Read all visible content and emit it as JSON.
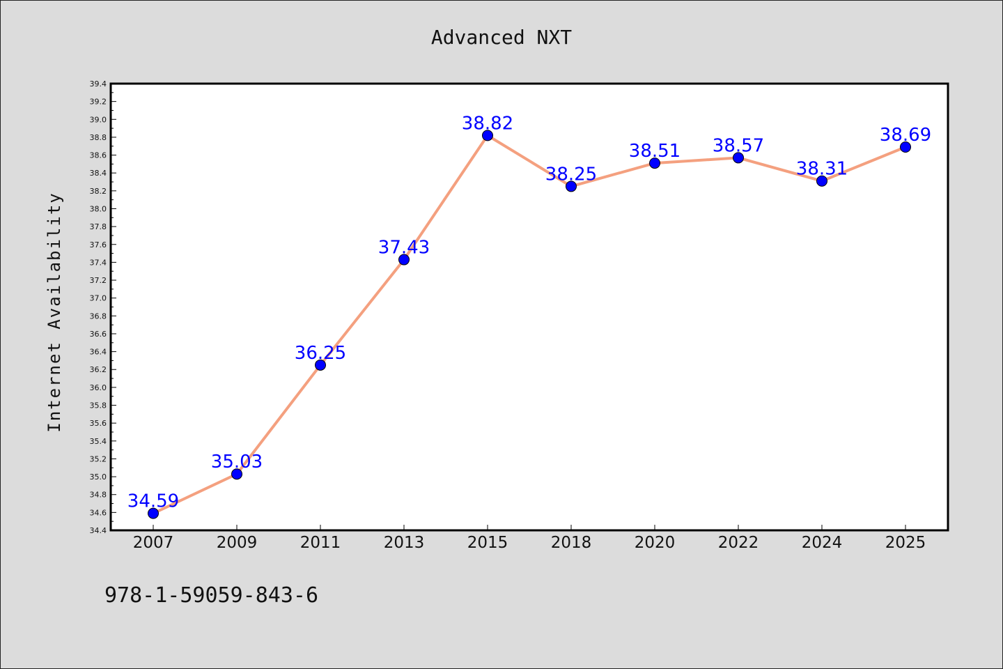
{
  "chart_data": {
    "type": "line",
    "title": "Advanced NXT",
    "xlabel": "",
    "ylabel": "Internet Availability",
    "categories": [
      "2007",
      "2009",
      "2011",
      "2013",
      "2015",
      "2018",
      "2020",
      "2022",
      "2024",
      "2025"
    ],
    "series": [
      {
        "values": [
          34.59,
          35.03,
          36.25,
          37.43,
          38.82,
          38.25,
          38.51,
          38.57,
          38.31,
          38.69
        ],
        "labels": [
          "34.59",
          "35.03",
          "36.25",
          "37.43",
          "38.82",
          "38.25",
          "38.51",
          "38.57",
          "38.31",
          "38.69"
        ]
      }
    ],
    "ylim": [
      34.4,
      39.4
    ],
    "yticks": [
      "34.4",
      "34.6",
      "34.8",
      "35.0",
      "35.2",
      "35.4",
      "35.6",
      "35.8",
      "36.0",
      "36.2",
      "36.4",
      "36.6",
      "36.8",
      "37.0",
      "37.2",
      "37.4",
      "37.6",
      "37.8",
      "38.0",
      "38.2",
      "38.4",
      "38.6",
      "38.8",
      "39.0",
      "39.2",
      "39.4"
    ],
    "line_color": "#f4a07f",
    "marker_color": "#0000ff",
    "label_color": "#0000ff",
    "grid": false,
    "legend": "none"
  },
  "footer_text": "978-1-59059-843-6"
}
